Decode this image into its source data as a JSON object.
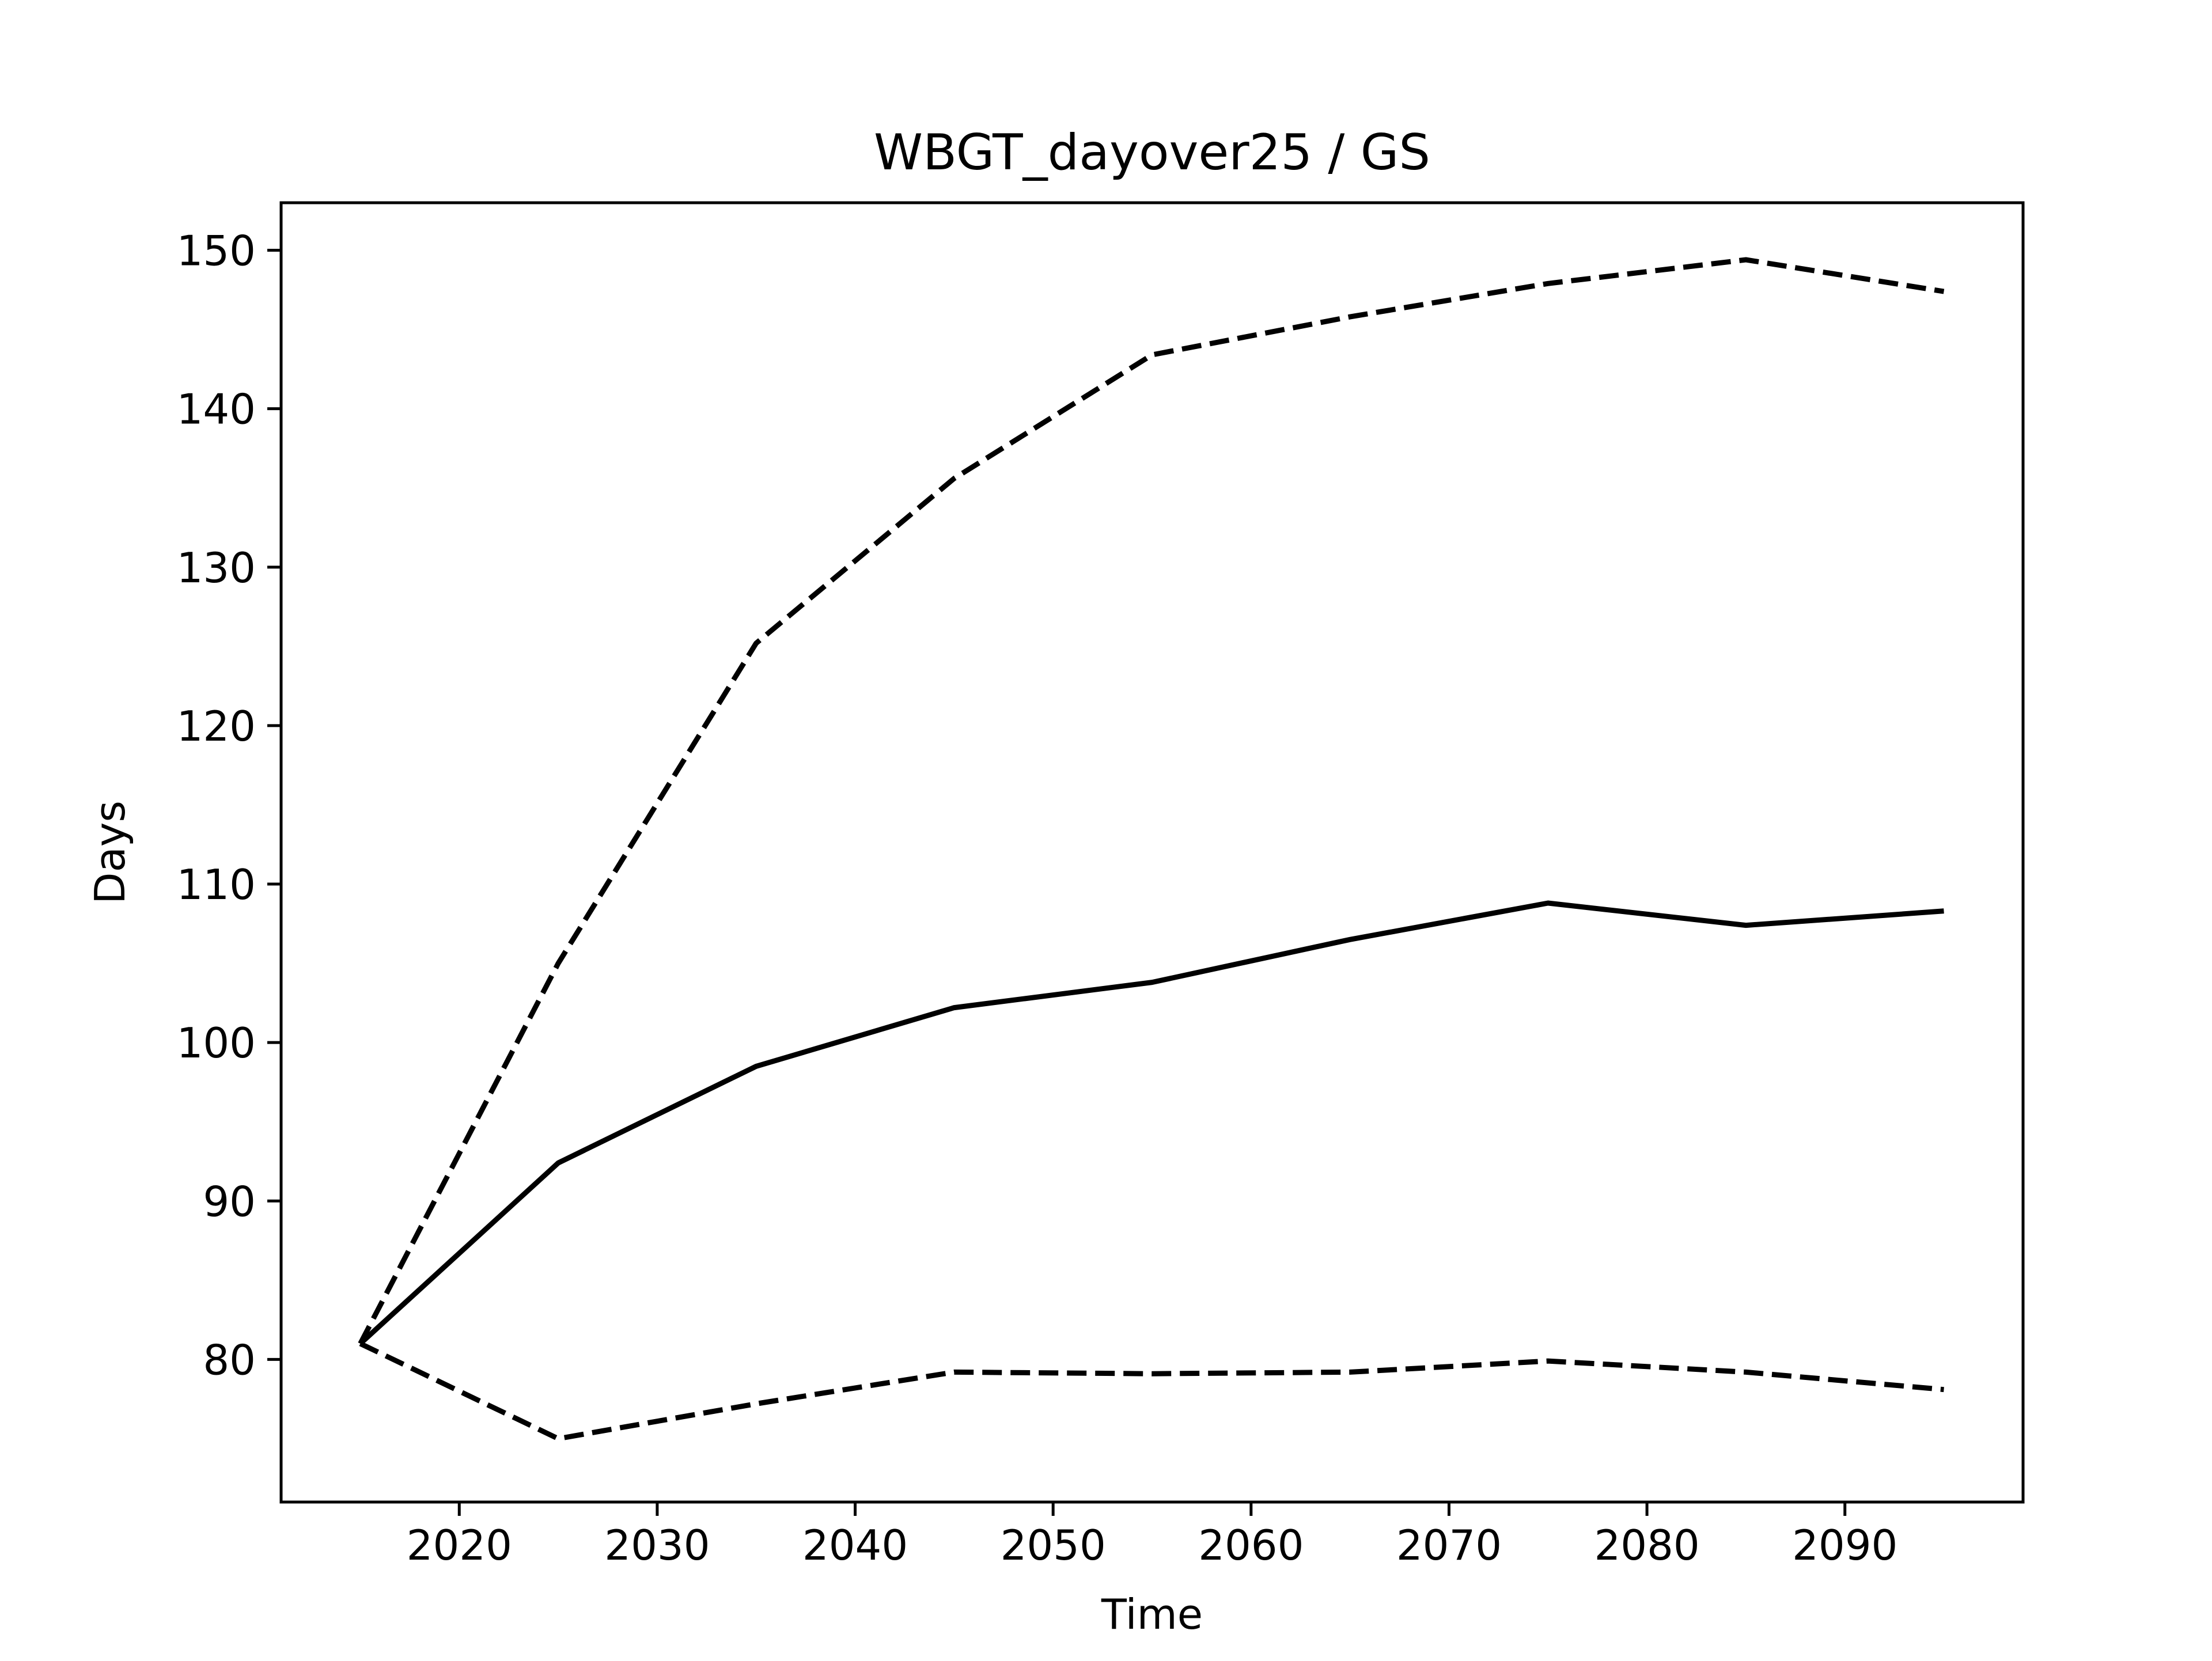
{
  "chart_data": {
    "type": "line",
    "title": "WBGT_dayover25 / GS",
    "xlabel": "Time",
    "ylabel": "Days",
    "xlim": [
      2011,
      2099
    ],
    "ylim": [
      71,
      153
    ],
    "xticks": [
      2020,
      2030,
      2040,
      2050,
      2060,
      2070,
      2080,
      2090
    ],
    "yticks": [
      80,
      90,
      100,
      110,
      120,
      130,
      140,
      150
    ],
    "grid": false,
    "legend": "none",
    "x": [
      2015,
      2025,
      2035,
      2045,
      2055,
      2065,
      2075,
      2085,
      2095
    ],
    "series": [
      {
        "style": "solid",
        "color": "#000000",
        "values": [
          81.0,
          92.4,
          98.5,
          102.2,
          103.8,
          106.5,
          108.8,
          107.4,
          108.3
        ]
      },
      {
        "style": "dashed",
        "color": "#000000",
        "values": [
          81.0,
          105.0,
          125.2,
          135.6,
          143.4,
          145.8,
          147.9,
          149.4,
          147.4
        ]
      },
      {
        "style": "dashed",
        "color": "#000000",
        "values": [
          81.0,
          75.0,
          77.2,
          79.2,
          79.1,
          79.2,
          79.9,
          79.2,
          78.1
        ]
      }
    ]
  }
}
